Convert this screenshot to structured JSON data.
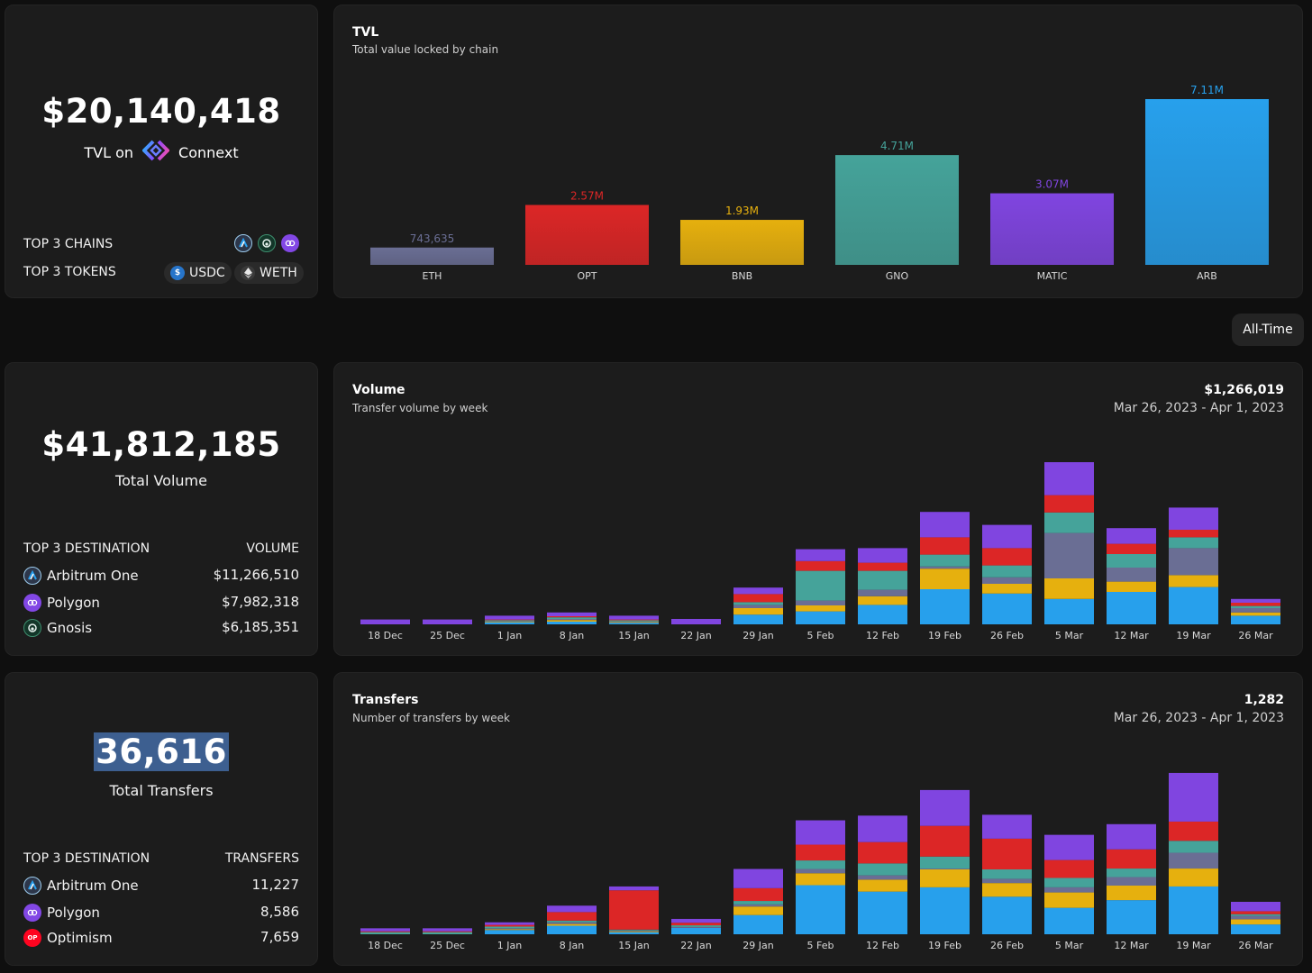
{
  "colors": {
    "arb": "#27a0ec",
    "bnb": "#e6b00e",
    "eth": "#6a6e94",
    "gno": "#45a39a",
    "opt": "#dc2626",
    "matic": "#8045e0"
  },
  "tvl_card": {
    "amount": "$20,140,418",
    "label_prefix": "TVL on",
    "brand": "Connext",
    "top_chains_label": "TOP 3 CHAINS",
    "top_chains": [
      "arbitrum-icon",
      "gnosis-icon",
      "polygon-icon"
    ],
    "top_tokens_label": "TOP 3 TOKENS",
    "tokens": [
      {
        "symbol": "USDC",
        "icon": "usdc-icon"
      },
      {
        "symbol": "WETH",
        "icon": "eth-icon"
      }
    ]
  },
  "time_filter": "All-Time",
  "volume_card": {
    "amount": "$41,812,185",
    "label": "Total Volume",
    "col1": "TOP 3 DESTINATION",
    "col2": "VOLUME",
    "rows": [
      {
        "name": "Arbitrum One",
        "value": "$11,266,510",
        "icon": "arbitrum-icon"
      },
      {
        "name": "Polygon",
        "value": "$7,982,318",
        "icon": "polygon-icon"
      },
      {
        "name": "Gnosis",
        "value": "$6,185,351",
        "icon": "gnosis-icon"
      }
    ]
  },
  "transfers_card": {
    "amount": "36,616",
    "label": "Total Transfers",
    "col1": "TOP 3 DESTINATION",
    "col2": "TRANSFERS",
    "rows": [
      {
        "name": "Arbitrum One",
        "value": "11,227",
        "icon": "arbitrum-icon"
      },
      {
        "name": "Polygon",
        "value": "8,586",
        "icon": "polygon-icon"
      },
      {
        "name": "Optimism",
        "value": "7,659",
        "icon": "optimism-icon"
      }
    ]
  },
  "chart_data": [
    {
      "type": "bar",
      "title": "TVL",
      "subtitle": "Total value locked by chain",
      "categories": [
        "ETH",
        "OPT",
        "BNB",
        "GNO",
        "MATIC",
        "ARB"
      ],
      "values": [
        743635,
        2570000,
        1930000,
        4710000,
        3070000,
        7110000
      ],
      "value_labels": [
        "743,635",
        "2.57M",
        "1.93M",
        "4.71M",
        "3.07M",
        "7.11M"
      ],
      "colors": [
        "#6a6e94",
        "#dc2626",
        "#e6b00e",
        "#45a39a",
        "#8045e0",
        "#27a0ec"
      ],
      "ylim": [
        0,
        7110000
      ]
    },
    {
      "type": "bar",
      "stacked": true,
      "title": "Volume",
      "subtitle": "Transfer volume by week",
      "right_value": "$1,266,019",
      "right_range": "Mar 26, 2023 - Apr 1, 2023",
      "categories": [
        "18 Dec",
        "25 Dec",
        "1 Jan",
        "8 Jan",
        "15 Jan",
        "22 Jan",
        "29 Jan",
        "5 Feb",
        "12 Feb",
        "19 Feb",
        "26 Feb",
        "5 Mar",
        "12 Mar",
        "19 Mar",
        "26 Mar"
      ],
      "ylim": [
        0,
        3000000
      ],
      "series": [
        {
          "name": "ARB",
          "color": "#27a0ec",
          "values": [
            0,
            0,
            40000,
            50000,
            30000,
            0,
            180000,
            240000,
            360000,
            650000,
            570000,
            470000,
            600000,
            690000,
            160000
          ]
        },
        {
          "name": "BNB",
          "color": "#e6b00e",
          "values": [
            0,
            0,
            10000,
            30000,
            15000,
            0,
            120000,
            110000,
            160000,
            380000,
            180000,
            380000,
            190000,
            220000,
            60000
          ]
        },
        {
          "name": "ETH",
          "color": "#6a6e94",
          "values": [
            0,
            0,
            10000,
            20000,
            10000,
            0,
            60000,
            90000,
            120000,
            40000,
            120000,
            840000,
            260000,
            500000,
            80000
          ]
        },
        {
          "name": "GNO",
          "color": "#45a39a",
          "values": [
            0,
            0,
            20000,
            30000,
            20000,
            0,
            50000,
            550000,
            350000,
            220000,
            220000,
            380000,
            250000,
            200000,
            40000
          ]
        },
        {
          "name": "OPT",
          "color": "#dc2626",
          "values": [
            0,
            0,
            10000,
            20000,
            15000,
            0,
            150000,
            180000,
            150000,
            320000,
            320000,
            320000,
            190000,
            140000,
            60000
          ]
        },
        {
          "name": "MATIC",
          "color": "#8045e0",
          "values": [
            90000,
            90000,
            70000,
            70000,
            70000,
            100000,
            120000,
            220000,
            270000,
            470000,
            430000,
            610000,
            290000,
            410000,
            70000
          ]
        }
      ]
    },
    {
      "type": "bar",
      "stacked": true,
      "title": "Transfers",
      "subtitle": "Number of transfers by week",
      "right_value": "1,282",
      "right_range": "Mar 26, 2023 - Apr 1, 2023",
      "categories": [
        "18 Dec",
        "25 Dec",
        "1 Jan",
        "8 Jan",
        "15 Jan",
        "22 Jan",
        "29 Jan",
        "5 Feb",
        "12 Feb",
        "19 Feb",
        "26 Feb",
        "5 Mar",
        "12 Mar",
        "19 Mar",
        "26 Mar"
      ],
      "ylim": [
        0,
        3800
      ],
      "series": [
        {
          "name": "ARB",
          "color": "#27a0ec",
          "values": [
            0,
            0,
            100,
            200,
            50,
            150,
            450,
            1150,
            1000,
            1100,
            880,
            620,
            800,
            1120,
            230
          ]
        },
        {
          "name": "BNB",
          "color": "#e6b00e",
          "values": [
            0,
            0,
            20,
            40,
            20,
            0,
            200,
            280,
            280,
            420,
            320,
            360,
            340,
            420,
            120
          ]
        },
        {
          "name": "ETH",
          "color": "#6a6e94",
          "values": [
            0,
            0,
            20,
            40,
            20,
            20,
            50,
            100,
            100,
            20,
            100,
            120,
            200,
            370,
            80
          ]
        },
        {
          "name": "GNO",
          "color": "#45a39a",
          "values": [
            50,
            50,
            40,
            40,
            20,
            40,
            80,
            200,
            280,
            280,
            220,
            220,
            200,
            280,
            40
          ]
        },
        {
          "name": "OPT",
          "color": "#dc2626",
          "values": [
            20,
            20,
            40,
            200,
            920,
            60,
            300,
            370,
            500,
            720,
            720,
            420,
            450,
            450,
            70
          ]
        },
        {
          "name": "MATIC",
          "color": "#8045e0",
          "values": [
            70,
            70,
            60,
            150,
            90,
            90,
            450,
            570,
            620,
            840,
            560,
            590,
            590,
            1140,
            220
          ]
        }
      ]
    }
  ]
}
